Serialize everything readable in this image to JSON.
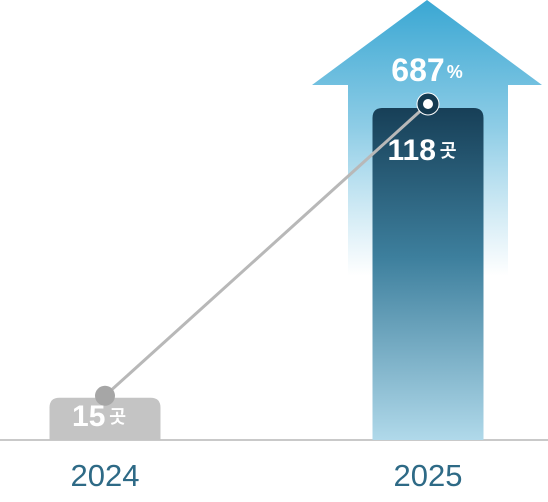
{
  "chart_data": {
    "type": "bar",
    "categories": [
      "2024",
      "2025"
    ],
    "values": [
      15,
      118
    ],
    "unit": "곳",
    "growth": {
      "value": 687,
      "unit": "%"
    },
    "colors": [
      "#c4c4c4",
      "#1d5571"
    ]
  }
}
